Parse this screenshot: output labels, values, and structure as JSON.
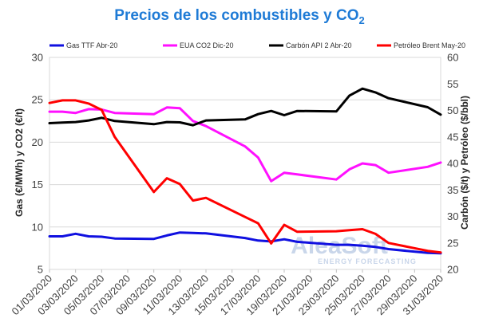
{
  "chart_data": {
    "type": "line",
    "title": "Precios de los combustibles y CO",
    "title_subscript": "2",
    "ylabel": "Gas (€/MWh) y CO2 (€/t)",
    "ylabel_right": "Carbón ($/t) y Petróleo ($/bbl)",
    "ylim": [
      5,
      30
    ],
    "yticks": [
      5,
      10,
      15,
      20,
      25,
      30
    ],
    "ylim_right": [
      20,
      60
    ],
    "yticks_right": [
      20,
      25,
      30,
      35,
      40,
      45,
      50,
      55,
      60
    ],
    "xlim": [
      "2020-03-01",
      "2020-03-31"
    ],
    "x_tick_labels": [
      "01/03/2020",
      "03/03/2020",
      "05/03/2020",
      "07/03/2020",
      "09/03/2020",
      "11/03/2020",
      "13/03/2020",
      "15/03/2020",
      "17/03/2020",
      "19/03/2020",
      "21/03/2020",
      "23/03/2020",
      "25/03/2020",
      "27/03/2020",
      "29/03/2020",
      "31/03/2020"
    ],
    "grid": true,
    "legend_position": "top",
    "series": [
      {
        "name": "Gas TTF Abr-20",
        "axis": "left",
        "color": "#1010e0",
        "x": [
          "2020-03-01",
          "2020-03-02",
          "2020-03-03",
          "2020-03-04",
          "2020-03-05",
          "2020-03-06",
          "2020-03-09",
          "2020-03-10",
          "2020-03-11",
          "2020-03-12",
          "2020-03-13",
          "2020-03-16",
          "2020-03-17",
          "2020-03-18",
          "2020-03-19",
          "2020-03-20",
          "2020-03-23",
          "2020-03-24",
          "2020-03-25",
          "2020-03-26",
          "2020-03-27",
          "2020-03-30",
          "2020-03-31"
        ],
        "values": [
          8.9,
          8.9,
          9.2,
          8.9,
          8.85,
          8.65,
          8.6,
          9.0,
          9.35,
          9.3,
          9.25,
          8.7,
          8.4,
          8.3,
          8.55,
          8.25,
          7.9,
          7.9,
          7.8,
          7.65,
          7.4,
          6.95,
          6.9
        ]
      },
      {
        "name": "EUA CO2 Dic-20",
        "axis": "left",
        "color": "#ff10ff",
        "x": [
          "2020-03-01",
          "2020-03-02",
          "2020-03-03",
          "2020-03-04",
          "2020-03-05",
          "2020-03-06",
          "2020-03-09",
          "2020-03-10",
          "2020-03-11",
          "2020-03-12",
          "2020-03-13",
          "2020-03-16",
          "2020-03-17",
          "2020-03-18",
          "2020-03-19",
          "2020-03-20",
          "2020-03-23",
          "2020-03-24",
          "2020-03-25",
          "2020-03-26",
          "2020-03-27",
          "2020-03-30",
          "2020-03-31"
        ],
        "values": [
          23.6,
          23.6,
          23.45,
          23.9,
          23.85,
          23.45,
          23.3,
          24.1,
          24.0,
          22.5,
          21.9,
          19.5,
          18.2,
          15.4,
          16.4,
          16.2,
          15.6,
          16.8,
          17.5,
          17.3,
          16.4,
          17.1,
          17.6
        ]
      },
      {
        "name": "Carbón API 2 Abr-20",
        "axis": "right",
        "color": "#000000",
        "x": [
          "2020-03-01",
          "2020-03-02",
          "2020-03-03",
          "2020-03-04",
          "2020-03-05",
          "2020-03-06",
          "2020-03-09",
          "2020-03-10",
          "2020-03-11",
          "2020-03-12",
          "2020-03-13",
          "2020-03-16",
          "2020-03-17",
          "2020-03-18",
          "2020-03-19",
          "2020-03-20",
          "2020-03-23",
          "2020-03-24",
          "2020-03-25",
          "2020-03-26",
          "2020-03-27",
          "2020-03-30",
          "2020-03-31"
        ],
        "values": [
          47.6,
          47.7,
          47.8,
          48.1,
          48.6,
          48.0,
          47.4,
          47.8,
          47.75,
          47.2,
          48.1,
          48.3,
          49.3,
          49.9,
          49.1,
          49.9,
          49.8,
          52.8,
          54.1,
          53.4,
          52.3,
          50.6,
          49.2
        ]
      },
      {
        "name": "Petróleo Brent May-20",
        "axis": "right",
        "color": "#ff0000",
        "x": [
          "2020-03-01",
          "2020-03-02",
          "2020-03-03",
          "2020-03-04",
          "2020-03-05",
          "2020-03-06",
          "2020-03-09",
          "2020-03-10",
          "2020-03-11",
          "2020-03-12",
          "2020-03-13",
          "2020-03-16",
          "2020-03-17",
          "2020-03-18",
          "2020-03-19",
          "2020-03-20",
          "2020-03-23",
          "2020-03-24",
          "2020-03-25",
          "2020-03-26",
          "2020-03-27",
          "2020-03-30",
          "2020-03-31"
        ],
        "values": [
          51.4,
          51.9,
          51.9,
          51.3,
          50.1,
          45.0,
          34.6,
          37.2,
          36.1,
          33.0,
          33.5,
          29.9,
          28.7,
          24.9,
          28.4,
          27.1,
          27.2,
          27.4,
          27.6,
          26.7,
          25.0,
          23.5,
          23.2
        ]
      }
    ],
    "watermark": {
      "main": "AleaSoft",
      "sub": "ENERGY FORECASTING"
    }
  }
}
